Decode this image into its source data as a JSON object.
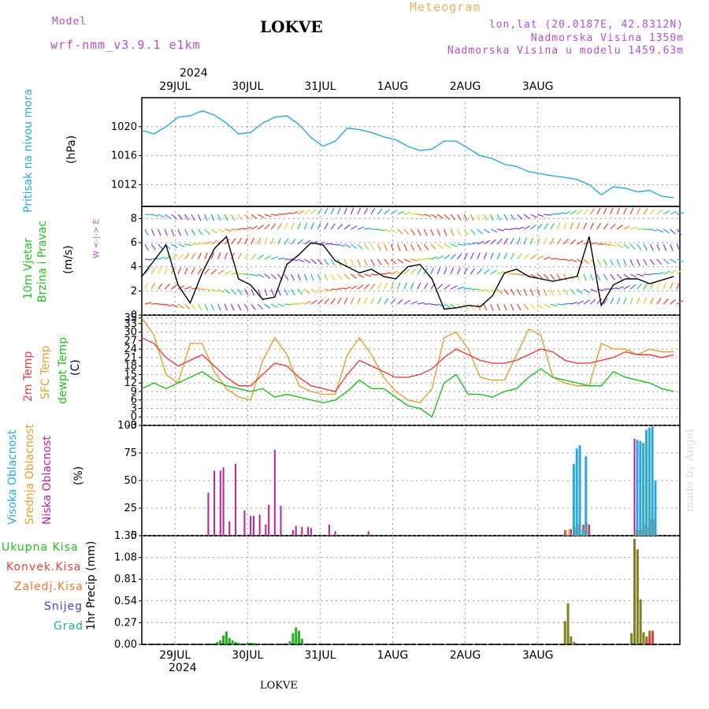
{
  "header": {
    "model_label": "Model",
    "model_name": "wrf-nmm_v3.9.1 e1km",
    "station": "LOKVE",
    "title": "Meteogram",
    "lonlat": "lon,lat (20.0187E, 42.8312N)",
    "altitude": "Nadmorska Visina 1350m",
    "altitude_model": "Nadmorska Visina u modelu 1459.63m",
    "year": "2024"
  },
  "footer": {
    "station": "LOKVE",
    "year": "2024",
    "watermark": "made by Angel"
  },
  "days": [
    "29JUL",
    "30JUL",
    "31JUL",
    "1AUG",
    "2AUG",
    "3AUG"
  ],
  "colors": {
    "pressure": "#2aa8e0",
    "temp2m": "#e84040",
    "sfc": "#e0a030",
    "dewpt": "#20c020",
    "precip": "#20b020",
    "precip_conv": "#808020",
    "cloud_high": "#2aa8e0",
    "cloud_mid": "#e0a030",
    "cloud_low": "#c0209a"
  },
  "panels": {
    "pressure": {
      "label_main": "Pritisak na nivou mora",
      "unit": "(hPa)"
    },
    "wind": {
      "label_line1": "10m Vjetar",
      "label_line2": "Brzina i Pravac",
      "unit": "(m/s)",
      "compass": "W <-|-> E"
    },
    "temp": {
      "label_2m": "2m Temp",
      "label_sfc": "SFC Temp",
      "label_dew": "dewpt Temp",
      "unit": "(C)"
    },
    "cloud": {
      "label_high": "Visoka Oblacnost",
      "label_mid": "Srednja Oblacnost",
      "label_low": "Niska Oblacnost",
      "unit": "(%)"
    },
    "precip": {
      "legend": [
        "Ukupna Kisa",
        "Konvek.Kisa",
        "Zaledj.Kisa",
        "Snijeg",
        "Grad"
      ],
      "unit": "1hr Precip (mm)"
    }
  },
  "chart_data": [
    {
      "type": "line",
      "ylabel": "(hPa)",
      "ylim": [
        1009,
        1024
      ],
      "yticks": [
        1012,
        1016,
        1020
      ],
      "x_hours": [
        0,
        4,
        8,
        12,
        16,
        20,
        24,
        28,
        32,
        36,
        40,
        44,
        48,
        52,
        56,
        60,
        64,
        68,
        72,
        76,
        80,
        84,
        88,
        92,
        96,
        100,
        104,
        108,
        112,
        116,
        120,
        124,
        128,
        132,
        136,
        140,
        144,
        148,
        152,
        156,
        160,
        164,
        168,
        172,
        176
      ],
      "series": [
        {
          "values": [
            1019.5,
            1019,
            1020,
            1021.3,
            1021.5,
            1022.2,
            1021.6,
            1020.5,
            1019.0,
            1019.2,
            1020.5,
            1021.3,
            1021.5,
            1020.3,
            1018.5,
            1017.3,
            1018.0,
            1019.8,
            1019.6,
            1019.2,
            1018.6,
            1018.2,
            1017.3,
            1016.7,
            1016.9,
            1018.0,
            1018.0,
            1017.0,
            1016.0,
            1015.6,
            1014.8,
            1014.5,
            1013.8,
            1013.5,
            1013.2,
            1013.0,
            1012.7,
            1012.0,
            1010.6,
            1011.7,
            1011.5,
            1011.0,
            1011.2,
            1010.4,
            1010.2
          ]
        }
      ]
    },
    {
      "type": "line",
      "ylabel": "(m/s)",
      "ylim": [
        0,
        9
      ],
      "yticks": [
        0,
        2,
        4,
        6,
        8
      ],
      "x_hours": [
        0,
        4,
        8,
        12,
        16,
        20,
        24,
        28,
        32,
        36,
        40,
        44,
        48,
        52,
        56,
        60,
        64,
        68,
        72,
        76,
        80,
        84,
        88,
        92,
        96,
        100,
        104,
        108,
        112,
        116,
        120,
        124,
        128,
        132,
        136,
        140,
        144,
        148,
        152,
        156,
        160,
        164,
        168,
        172,
        176
      ],
      "series": [
        {
          "values": [
            3.2,
            4.5,
            5.8,
            2.5,
            1.0,
            3.5,
            5.5,
            6.5,
            3.0,
            2.5,
            1.3,
            1.5,
            4.2,
            5.0,
            6.0,
            5.8,
            4.5,
            4.0,
            3.5,
            3.8,
            3.2,
            3.0,
            4.0,
            4.2,
            3.0,
            0.5,
            0.6,
            0.8,
            0.7,
            1.6,
            3.5,
            3.8,
            3.2,
            3.0,
            2.8,
            3.0,
            3.2,
            6.5,
            0.8,
            2.5,
            3.0,
            3.0,
            2.6,
            2.9,
            3.2
          ]
        }
      ]
    },
    {
      "type": "line",
      "ylabel": "(C)",
      "ylim": [
        -3,
        36
      ],
      "yticks": [
        -3,
        0,
        3,
        6,
        9,
        12,
        15,
        18,
        21,
        24,
        27,
        30,
        33,
        35
      ],
      "x_hours": [
        0,
        4,
        8,
        12,
        16,
        20,
        24,
        28,
        32,
        36,
        40,
        44,
        48,
        52,
        56,
        60,
        64,
        68,
        72,
        76,
        80,
        84,
        88,
        92,
        96,
        100,
        104,
        108,
        112,
        116,
        120,
        124,
        128,
        132,
        136,
        140,
        144,
        148,
        152,
        156,
        160,
        164,
        168,
        172,
        176
      ],
      "series": [
        {
          "name": "2m Temp",
          "values": [
            28,
            26,
            21,
            18,
            20,
            22,
            18,
            14,
            11,
            11,
            15,
            19,
            18,
            14,
            11,
            10,
            9,
            15,
            20,
            18,
            16,
            14,
            14,
            15,
            17,
            21,
            24,
            22,
            20,
            19,
            19,
            20,
            22,
            24,
            23,
            20,
            19,
            19,
            20,
            21,
            23,
            22,
            22,
            21,
            22
          ]
        },
        {
          "name": "SFC Temp",
          "values": [
            35,
            29,
            15,
            12,
            26,
            26,
            16,
            10,
            7,
            6,
            20,
            28,
            22,
            11,
            9,
            8,
            8,
            22,
            28,
            22,
            14,
            9,
            6,
            5,
            10,
            28,
            30,
            24,
            14,
            13,
            13,
            22,
            31,
            29,
            14,
            12,
            11,
            11,
            26,
            24,
            24,
            22,
            24,
            23,
            23
          ]
        },
        {
          "name": "dewpt Temp",
          "values": [
            10,
            12,
            10,
            12,
            14,
            16,
            13,
            11,
            10,
            9,
            10,
            7,
            8,
            7,
            6,
            5,
            6,
            9,
            13,
            10,
            10,
            7,
            4,
            3,
            0,
            12,
            15,
            8,
            8,
            7,
            9,
            10,
            14,
            17,
            14,
            13,
            12,
            11,
            11,
            16,
            14,
            13,
            12,
            10,
            9
          ]
        }
      ]
    },
    {
      "type": "bar",
      "ylabel": "(%)",
      "ylim": [
        0,
        100
      ],
      "yticks": [
        0,
        25,
        50,
        75,
        100
      ],
      "series": [
        {
          "name": "Niska Oblacnost",
          "x_hours": [
            22,
            24,
            26,
            27,
            29,
            31,
            34,
            36,
            37,
            39,
            41,
            42,
            44,
            46,
            50,
            51,
            53,
            55,
            56,
            62,
            64,
            75,
            140,
            142,
            144,
            146,
            147,
            148,
            163,
            164,
            165,
            166,
            167,
            168,
            169
          ],
          "values": [
            39,
            59,
            59,
            62,
            13,
            65,
            23,
            18,
            18,
            19,
            10,
            28,
            78,
            27,
            5,
            9,
            8,
            8,
            7,
            10,
            4,
            4,
            5,
            6,
            8,
            10,
            11,
            10,
            88,
            86,
            85,
            59,
            60,
            50,
            20
          ]
        },
        {
          "name": "Srednja Oblacnost",
          "x_hours": [
            140,
            141,
            143,
            144,
            146,
            147,
            163,
            164,
            165,
            166,
            167,
            168,
            169
          ],
          "values": [
            5,
            6,
            8,
            10,
            10,
            12,
            5,
            5,
            6,
            10,
            8,
            15,
            15
          ]
        },
        {
          "name": "Visoka Oblacnost",
          "x_hours": [
            142,
            143,
            144,
            145,
            146,
            163,
            164,
            165,
            166,
            167,
            168,
            169
          ],
          "values": [
            65,
            79,
            82,
            5,
            72,
            87,
            86,
            84,
            96,
            98,
            99,
            50
          ]
        }
      ]
    },
    {
      "type": "bar",
      "ylabel": "1hr Precip (mm)",
      "ylim": [
        0,
        1.35
      ],
      "yticks": [
        0,
        0.27,
        0.54,
        0.81,
        1.08,
        1.35
      ],
      "series": [
        {
          "name": "Ukupna Kisa",
          "x_hours": [
            24,
            25,
            26,
            27,
            28,
            29,
            30,
            31,
            32,
            35,
            36,
            37,
            49,
            50,
            51,
            52,
            53,
            140,
            141,
            142,
            143,
            162,
            163,
            164,
            165,
            166,
            167,
            168,
            169
          ],
          "values": [
            0.01,
            0.03,
            0.05,
            0.11,
            0.16,
            0.08,
            0.05,
            0.03,
            0.02,
            0.02,
            0.02,
            0.02,
            0.04,
            0.14,
            0.21,
            0.17,
            0.07,
            0.29,
            0.51,
            0.1,
            0.03,
            0.14,
            1.31,
            1.18,
            0.56,
            0.15,
            0.1,
            0.17,
            0.1
          ]
        },
        {
          "name": "Konvek.Kisa",
          "x_hours": [
            167,
            168,
            169
          ],
          "values": [
            0.05,
            0.1,
            0.17
          ]
        }
      ]
    }
  ]
}
